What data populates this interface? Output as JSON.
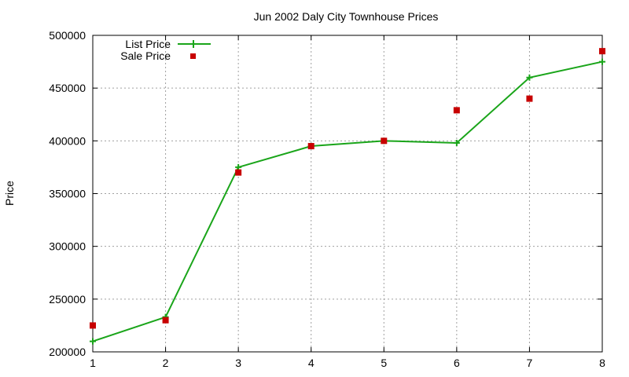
{
  "chart_data": {
    "type": "line",
    "title": "Jun 2002 Daly City Townhouse Prices",
    "xlabel": "",
    "ylabel": "Price",
    "x": [
      1,
      2,
      3,
      4,
      5,
      6,
      7,
      8
    ],
    "xlim": [
      1,
      8
    ],
    "ylim": [
      200000,
      500000
    ],
    "xticks": [
      "1",
      "2",
      "3",
      "4",
      "5",
      "6",
      "7",
      "8"
    ],
    "yticks": [
      "200000",
      "250000",
      "300000",
      "350000",
      "400000",
      "450000",
      "500000"
    ],
    "grid": true,
    "legend_position": "top-left",
    "series": [
      {
        "name": "List Price",
        "type": "line",
        "marker": "plus",
        "color": "#1aa51a",
        "values": [
          210000,
          233000,
          375000,
          395000,
          400000,
          398000,
          460000,
          475000
        ]
      },
      {
        "name": "Sale Price",
        "type": "scatter",
        "marker": "square",
        "color": "#c80000",
        "values": [
          225000,
          230000,
          370000,
          395000,
          400000,
          429000,
          440000,
          485000
        ]
      }
    ]
  }
}
